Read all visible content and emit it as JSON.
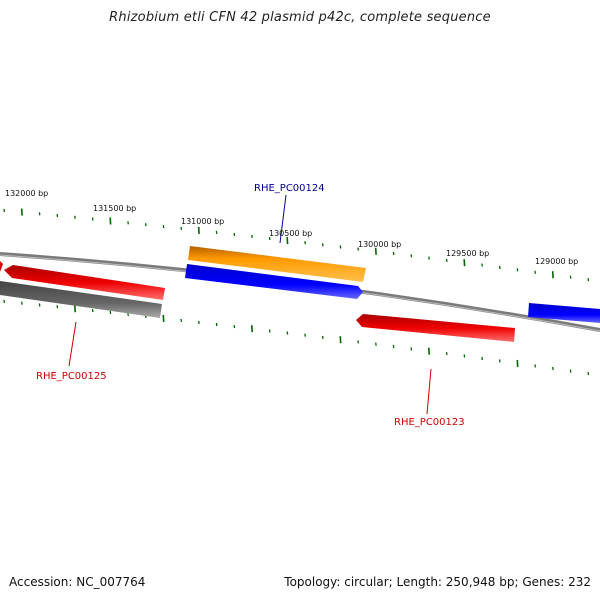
{
  "title": "Rhizobium etli CFN 42 plasmid p42c, complete sequence",
  "footer": {
    "accession": "Accession: NC_007764",
    "summary": "Topology: circular; Length: 250,948 bp; Genes: 232"
  },
  "ruler": {
    "labels": [
      "132000 bp",
      "131500 bp",
      "131000 bp",
      "130500 bp",
      "130000 bp",
      "129500 bp",
      "129000 bp"
    ]
  },
  "genes": [
    {
      "name": "RHE_PC00124",
      "label": "RHE_PC00124",
      "color": "#00008b"
    },
    {
      "name": "RHE_PC00125",
      "label": "RHE_PC00125",
      "color": "#cc0000"
    },
    {
      "name": "RHE_PC00123",
      "label": "RHE_PC00123",
      "color": "#cc0000"
    }
  ],
  "colors": {
    "orange_feature": "#ff9900",
    "blue_feature": "#0000ee",
    "red_feature": "#ee0000",
    "gray_feature": "#555555",
    "backbone": "#777777",
    "ticks": "#006600"
  }
}
